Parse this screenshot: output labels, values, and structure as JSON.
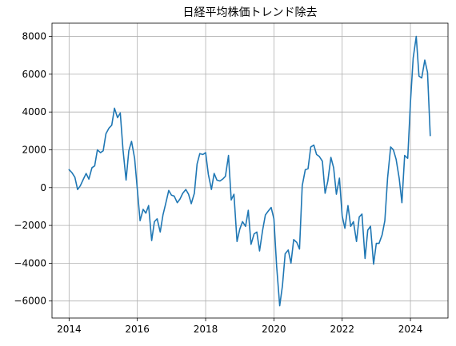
{
  "chart_data": {
    "type": "line",
    "title": "日経平均株価トレンド除去",
    "xlabel": "",
    "ylabel": "",
    "xlim": [
      2013.5,
      2025.1
    ],
    "ylim": [
      -6900,
      8700
    ],
    "grid": true,
    "line_color": "#1f77b4",
    "x_ticks": [
      2014,
      2016,
      2018,
      2020,
      2022,
      2024
    ],
    "x_tick_labels": [
      "2014",
      "2016",
      "2018",
      "2020",
      "2022",
      "2024"
    ],
    "y_ticks": [
      -6000,
      -4000,
      -2000,
      0,
      2000,
      4000,
      6000,
      8000
    ],
    "y_tick_labels": [
      "−6000",
      "−4000",
      "−2000",
      "0",
      "2000",
      "4000",
      "6000",
      "8000"
    ],
    "series": [
      {
        "x": [
          2014.0,
          2014.08,
          2014.17,
          2014.25,
          2014.33,
          2014.42,
          2014.5,
          2014.58,
          2014.67,
          2014.75,
          2014.83,
          2014.92,
          2015.0,
          2015.08,
          2015.17,
          2015.25,
          2015.33,
          2015.42,
          2015.5,
          2015.58,
          2015.67,
          2015.75,
          2015.83,
          2015.92,
          2016.0,
          2016.08,
          2016.17,
          2016.25,
          2016.33,
          2016.42,
          2016.5,
          2016.58,
          2016.67,
          2016.75,
          2016.83,
          2016.92,
          2017.0,
          2017.08,
          2017.17,
          2017.25,
          2017.33,
          2017.42,
          2017.5,
          2017.58,
          2017.67,
          2017.75,
          2017.83,
          2017.92,
          2018.0,
          2018.08,
          2018.17,
          2018.25,
          2018.33,
          2018.42,
          2018.5,
          2018.58,
          2018.67,
          2018.75,
          2018.83,
          2018.92,
          2019.0,
          2019.08,
          2019.17,
          2019.25,
          2019.33,
          2019.42,
          2019.5,
          2019.58,
          2019.67,
          2019.75,
          2019.83,
          2019.92,
          2020.0,
          2020.08,
          2020.17,
          2020.25,
          2020.33,
          2020.42,
          2020.5,
          2020.58,
          2020.67,
          2020.75,
          2020.83,
          2020.92,
          2021.0,
          2021.08,
          2021.17,
          2021.25,
          2021.33,
          2021.42,
          2021.5,
          2021.58,
          2021.67,
          2021.75,
          2021.83,
          2021.92,
          2022.0,
          2022.08,
          2022.17,
          2022.25,
          2022.33,
          2022.42,
          2022.5,
          2022.58,
          2022.67,
          2022.75,
          2022.83,
          2022.92,
          2023.0,
          2023.08,
          2023.17,
          2023.25,
          2023.33,
          2023.42,
          2023.5,
          2023.58,
          2023.67,
          2023.75,
          2023.83,
          2023.92,
          2024.0,
          2024.08,
          2024.17,
          2024.25,
          2024.33,
          2024.42,
          2024.5,
          2024.58
        ],
        "y": [
          950,
          800,
          550,
          -100,
          100,
          450,
          750,
          450,
          1050,
          1150,
          2000,
          1850,
          1950,
          2850,
          3150,
          3300,
          4200,
          3700,
          3950,
          2000,
          400,
          1950,
          2450,
          1550,
          -100,
          -1750,
          -1150,
          -1350,
          -950,
          -2800,
          -1800,
          -1650,
          -2350,
          -1450,
          -850,
          -150,
          -400,
          -450,
          -800,
          -600,
          -300,
          -100,
          -350,
          -850,
          -300,
          1250,
          1800,
          1750,
          1850,
          700,
          -100,
          750,
          400,
          350,
          450,
          600,
          1700,
          -650,
          -350,
          -2850,
          -2200,
          -1800,
          -2050,
          -1200,
          -3000,
          -2450,
          -2350,
          -3350,
          -2250,
          -1450,
          -1250,
          -1050,
          -1650,
          -4150,
          -6250,
          -5200,
          -3500,
          -3300,
          -4000,
          -2750,
          -2900,
          -3250,
          100,
          950,
          1000,
          2150,
          2250,
          1750,
          1650,
          1400,
          -300,
          350,
          1600,
          1050,
          -350,
          500,
          -1500,
          -2150,
          -950,
          -2050,
          -1800,
          -2850,
          -1550,
          -1400,
          -3750,
          -2250,
          -2050,
          -4050,
          -2950,
          -2950,
          -2500,
          -1750,
          500,
          2150,
          2000,
          1500,
          500,
          -800,
          1700,
          1550,
          4500,
          6850,
          8000,
          5900,
          5800,
          6750,
          6100,
          2750
        ]
      }
    ]
  }
}
